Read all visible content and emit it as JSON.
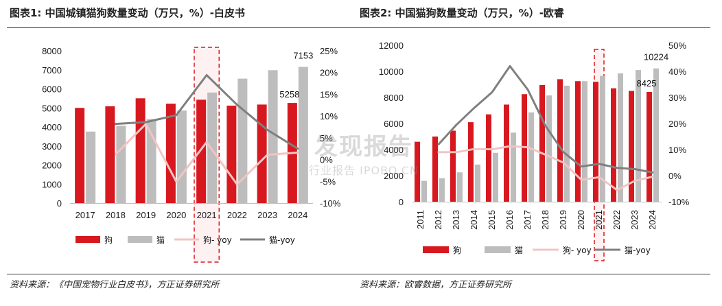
{
  "colors": {
    "dog": "#d7191f",
    "cat": "#bdbdbd",
    "dog_yoy": "#f2c4c4",
    "cat_yoy": "#7f7f7f",
    "highlight": "#d7191f"
  },
  "watermark": {
    "line1": "发现报告",
    "line2": "行业报告 IPOBO.CN"
  },
  "chart_data": [
    {
      "type": "bar",
      "title": "图表1: 中国城镇猫狗数量变动（万只，%）-白皮书",
      "source": "资料来源：《中国宠物行业白皮书》，方正证券研究所",
      "categories": [
        "2017",
        "2018",
        "2019",
        "2020",
        "2021",
        "2022",
        "2023",
        "2024"
      ],
      "ylim": [
        0,
        8000
      ],
      "yticks": [
        "8000",
        "7000",
        "6000",
        "5000",
        "4000",
        "3000",
        "2000",
        "1000",
        "0"
      ],
      "y2lim": [
        -10,
        25
      ],
      "y2ticks": [
        "25%",
        "20%",
        "15%",
        "10%",
        "5%",
        "0%",
        "-5%",
        "-10%"
      ],
      "highlight_category": "2021",
      "series": [
        {
          "name": "狗",
          "kind": "bar",
          "values": [
            5000,
            5085,
            5503,
            5222,
            5429,
            5119,
            5175,
            5258
          ]
        },
        {
          "name": "猫",
          "kind": "bar",
          "values": [
            3756,
            4064,
            4412,
            4862,
            5806,
            6536,
            6980,
            7153
          ]
        },
        {
          "name": "狗- yoy",
          "kind": "line",
          "values": [
            null,
            1.2,
            8.2,
            -5.1,
            4.0,
            -5.7,
            1.1,
            1.6
          ]
        },
        {
          "name": "猫-yoy",
          "kind": "line",
          "values": [
            null,
            8.2,
            8.6,
            10.2,
            19.4,
            12.6,
            6.8,
            2.5
          ]
        }
      ],
      "data_labels": [
        {
          "series": "猫",
          "category": "2024",
          "text": "7153"
        },
        {
          "series": "狗",
          "category": "2024",
          "text": "5258"
        }
      ]
    },
    {
      "type": "bar",
      "title": "图表2: 中国猫狗数量变动（万只，%）-欧睿",
      "source": "资料来源：欧睿数据，方正证券研究所",
      "categories": [
        "2011",
        "2012",
        "2013",
        "2014",
        "2015",
        "2016",
        "2017",
        "2018",
        "2019",
        "2020",
        "2021",
        "2022",
        "2023",
        "2024"
      ],
      "ylim": [
        0,
        12000
      ],
      "yticks": [
        "12000",
        "10000",
        "8000",
        "6000",
        "4000",
        "2000",
        "0"
      ],
      "y2lim": [
        -10,
        50
      ],
      "y2ticks": [
        "50%",
        "40%",
        "30%",
        "20%",
        "10%",
        "0%",
        "-10%"
      ],
      "highlight_category": "2021",
      "series": [
        {
          "name": "狗",
          "kind": "bar",
          "values": [
            4600,
            5000,
            5450,
            6100,
            6700,
            7450,
            8250,
            8950,
            9400,
            9250,
            9200,
            8700,
            8500,
            8425
          ]
        },
        {
          "name": "猫",
          "kind": "bar",
          "values": [
            1600,
            1800,
            2250,
            2850,
            3750,
            5300,
            6850,
            8150,
            8900,
            9250,
            9650,
            9850,
            10100,
            10224
          ]
        },
        {
          "name": "狗- yoy",
          "kind": "line",
          "values": [
            null,
            9.0,
            9.0,
            10.2,
            10.1,
            11.3,
            10.9,
            8.0,
            5.0,
            -1.6,
            -0.6,
            -5.5,
            -2.0,
            -0.4
          ]
        },
        {
          "name": "猫-yoy",
          "kind": "line",
          "values": [
            null,
            12.0,
            19.5,
            26.0,
            32.0,
            42.0,
            33.0,
            19.0,
            9.0,
            3.5,
            4.5,
            3.0,
            2.5,
            1.2
          ]
        }
      ],
      "data_labels": [
        {
          "series": "猫",
          "category": "2024",
          "text": "10224"
        },
        {
          "series": "狗",
          "category": "2024",
          "text": "8425"
        }
      ]
    }
  ]
}
